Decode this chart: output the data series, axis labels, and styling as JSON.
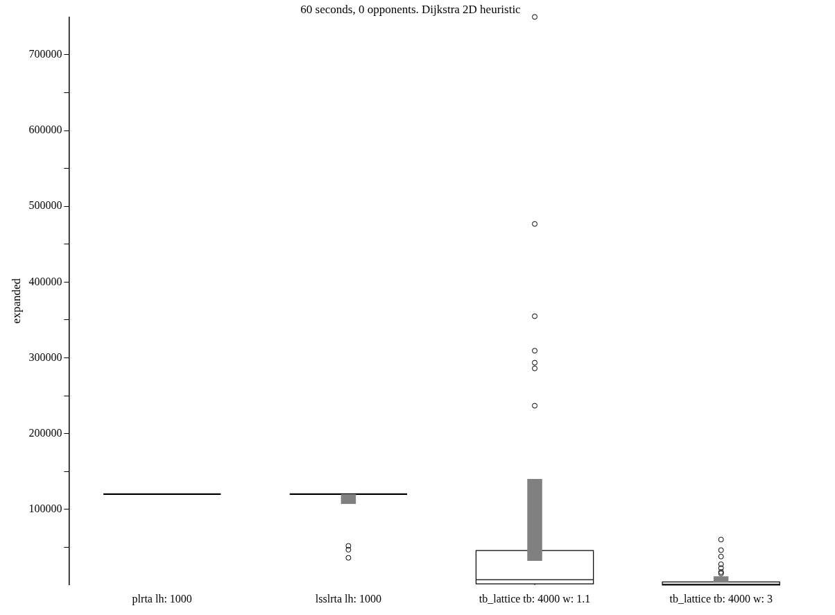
{
  "chart_data": {
    "type": "box",
    "title": "60 seconds, 0 opponents. Dijkstra 2D heuristic",
    "ylabel": "expanded",
    "categories": [
      "plrta lh: 1000",
      "lsslrta lh: 1000",
      "tb_lattice tb: 4000 w: 1.1",
      "tb_lattice tb: 4000 w: 3"
    ],
    "ylim": [
      0,
      750000
    ],
    "yticks": [
      {
        "value": 50000,
        "label": null
      },
      100000,
      {
        "value": 150000,
        "label": null
      },
      200000,
      {
        "value": 250000,
        "label": null
      },
      300000,
      {
        "value": 350000,
        "label": null
      },
      400000,
      {
        "value": 450000,
        "label": null
      },
      500000,
      {
        "value": 550000,
        "label": null
      },
      600000,
      {
        "value": 650000,
        "label": null
      },
      700000
    ],
    "series": [
      {
        "color": "#000000",
        "boxes": [
          {
            "low": 120000,
            "q1": 120000,
            "median": 120000,
            "q3": 120000,
            "high": 120000
          },
          {
            "low": 120000,
            "q1": 120000,
            "median": 120000,
            "q3": 120000,
            "high": 120000,
            "outliers": [
              51600,
              46600,
              35900
            ]
          },
          {
            "low": 0,
            "q1": 1500,
            "median": 7000,
            "q3": 45500,
            "high": 45500,
            "outliers": [
              750000,
              476700,
              354900,
              309300,
              293500,
              286000,
              236700
            ]
          },
          {
            "low": 0,
            "q1": 0,
            "median": 1000,
            "q3": 4000,
            "high": 4000,
            "outliers": [
              60000,
              46000,
              37600,
              27400,
              22400,
              17200,
              15300
            ]
          }
        ]
      },
      {
        "type": "bar",
        "color": "#808080",
        "base": [
          null,
          107000,
          32000,
          3000
        ],
        "values": [
          null,
          13000,
          108000,
          8600
        ]
      }
    ]
  }
}
